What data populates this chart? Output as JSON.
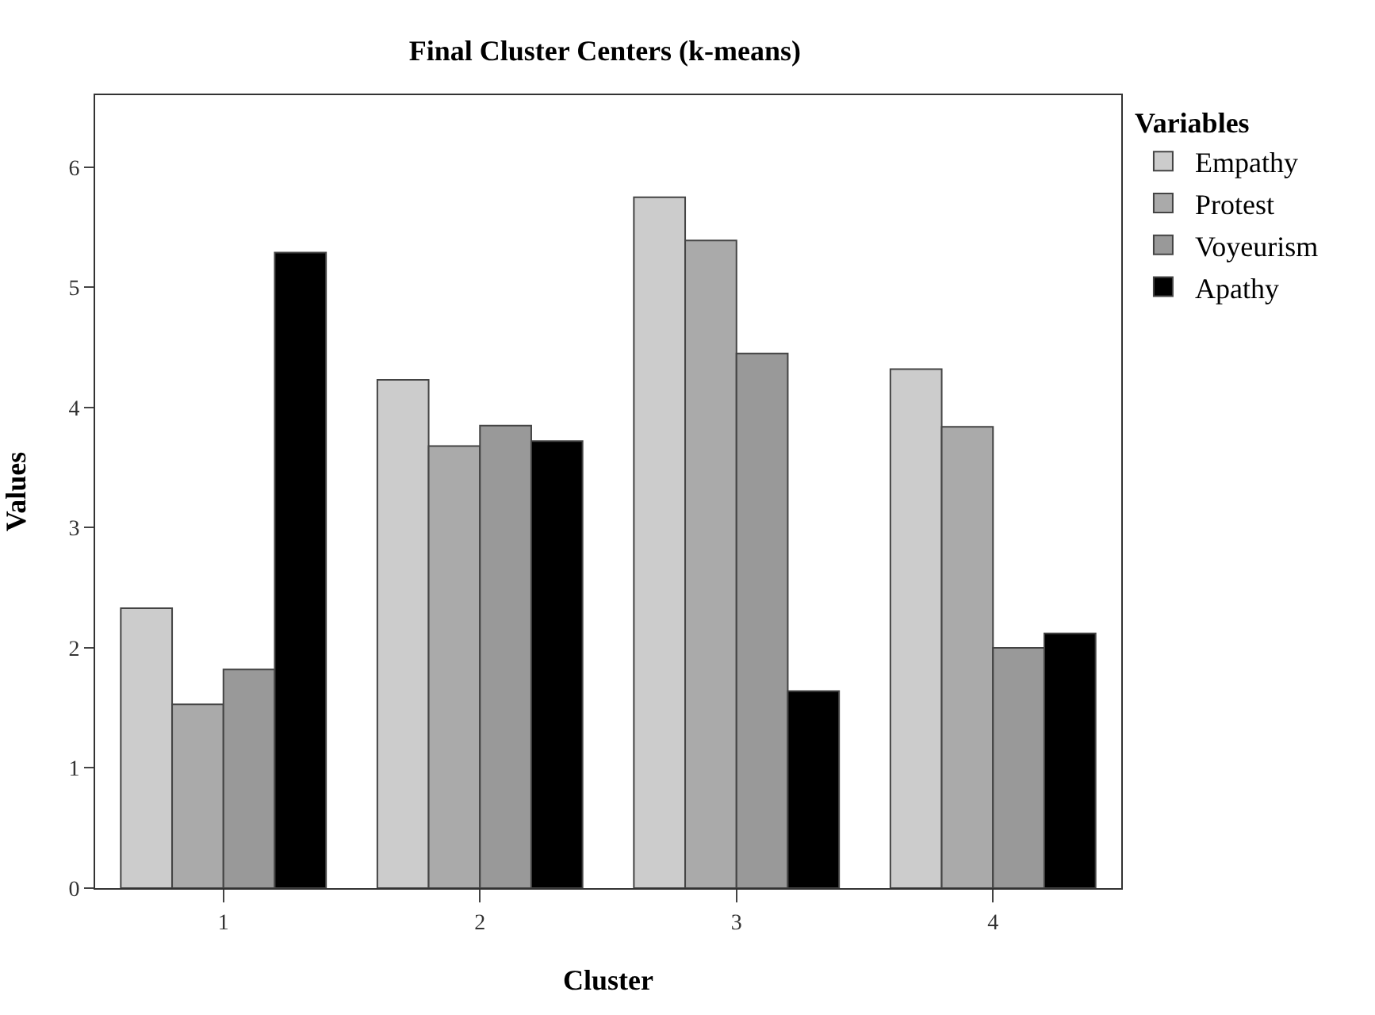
{
  "chart_data": {
    "type": "bar",
    "title": "Final Cluster Centers (k-means)",
    "xlabel": "Cluster",
    "ylabel": "Values",
    "legend_title": "Variables",
    "categories": [
      "1",
      "2",
      "3",
      "4"
    ],
    "series": [
      {
        "name": "Empathy",
        "color": "#cccccc",
        "values": [
          2.33,
          4.23,
          5.75,
          4.32
        ]
      },
      {
        "name": "Protest",
        "color": "#aaaaaa",
        "values": [
          1.53,
          3.68,
          5.39,
          3.84
        ]
      },
      {
        "name": "Voyeurism",
        "color": "#999999",
        "values": [
          1.82,
          3.85,
          4.45,
          2.0
        ]
      },
      {
        "name": "Apathy",
        "color": "#000000",
        "values": [
          5.29,
          3.72,
          1.64,
          2.12
        ]
      }
    ],
    "ylim": [
      0,
      6.6
    ],
    "yticks": [
      0,
      1,
      2,
      3,
      4,
      5,
      6
    ],
    "grid": false,
    "legend": "right"
  }
}
